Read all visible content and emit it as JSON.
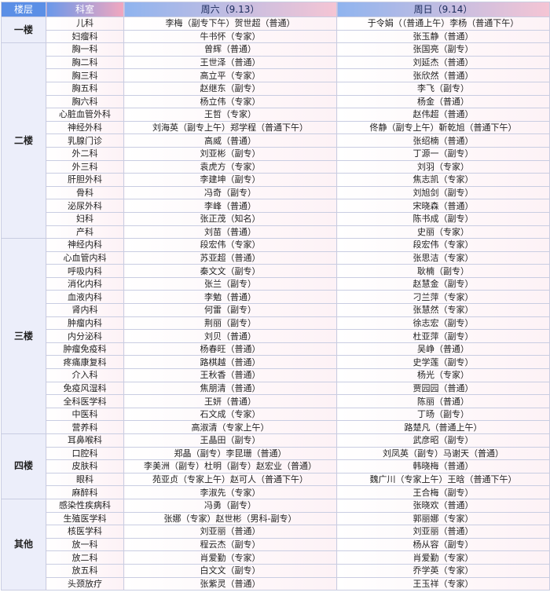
{
  "table": {
    "header": [
      "楼层",
      "科室",
      "周六（9.13）",
      "周日（9.14）"
    ],
    "groups": [
      {
        "floor": "一楼",
        "rows": [
          [
            "儿科",
            "李梅（副专下午）贺世超（普通）",
            "于令娟（（普通上午）李杨（普通下午）"
          ],
          [
            "妇瘤科",
            "牛书怀（专家）",
            "张玉静（普通）"
          ]
        ]
      },
      {
        "floor": "二楼",
        "rows": [
          [
            "胸一科",
            "曾辉（普通）",
            "张国亮（副专）"
          ],
          [
            "胸二科",
            "王世泽（普通）",
            "刘延杰（普通）"
          ],
          [
            "胸三科",
            "高立平（专家）",
            "张欣然（普通）"
          ],
          [
            "胸五科",
            "赵继东（副专）",
            "李飞（副专）"
          ],
          [
            "胸六科",
            "杨立伟（专家）",
            "杨金（普通）"
          ],
          [
            "心脏血管外科",
            "王哲（专家）",
            "赵伟超（普通）"
          ],
          [
            "神经外科",
            "刘海英（副专上午）郑学程（普通下午）",
            "佟静（副专上午）靳乾旭（普通下午）"
          ],
          [
            "乳腺门诊",
            "高威（普通）",
            "张绍楠（普通）"
          ],
          [
            "外二科",
            "刘亚彬（副专）",
            "丁源一（副专）"
          ],
          [
            "外三科",
            "袁虎方（专家）",
            "刘羽（专家）"
          ],
          [
            "肝胆外科",
            "李建坤（副专）",
            "焦志凯（专家）"
          ],
          [
            "骨科",
            "冯奇（副专）",
            "刘旭剑（副专）"
          ],
          [
            "泌尿外科",
            "李峰（普通）",
            "宋晓森（普通）"
          ],
          [
            "妇科",
            "张正茂（知名）",
            "陈书成（副专）"
          ],
          [
            "产科",
            "刘苗（普通）",
            "史丽（专家）"
          ]
        ]
      },
      {
        "floor": "三楼",
        "rows": [
          [
            "神经内科",
            "段宏伟（专家）",
            "段宏伟（专家）"
          ],
          [
            "心血管内科",
            "苏亚超（普通）",
            "张思洁（专家）"
          ],
          [
            "呼吸内科",
            "秦文文（副专）",
            "耿楠（副专）"
          ],
          [
            "消化内科",
            "张兰（副专）",
            "赵慧金（副专）"
          ],
          [
            "血液内科",
            "李勉（普通）",
            "刁兰萍（专家）"
          ],
          [
            "肾内科",
            "何雷（副专）",
            "张慧然（专家）"
          ],
          [
            "肿瘤内科",
            "荆丽（副专）",
            "徐志宏（副专）"
          ],
          [
            "内分泌科",
            "刘贝（普通）",
            "杜亚萍（副专）"
          ],
          [
            "肿瘤免疫科",
            "杨春旺（普通）",
            "吴峥（普通）"
          ],
          [
            "疼痛康复科",
            "路棋越（普通）",
            "史学莲（副专）"
          ],
          [
            "介入科",
            "王秋香（普通）",
            "杨光（专家）"
          ],
          [
            "免疫风湿科",
            "焦朋清（普通）",
            "贾园园（普通）"
          ],
          [
            "全科医学科",
            "王妍（普通）",
            "陈丽（普通）"
          ],
          [
            "中医科",
            "石文成（专家）",
            "丁旸（副专）"
          ],
          [
            "营养科",
            "高淑清（专家上午）",
            "路楚凡（普通上午）"
          ]
        ]
      },
      {
        "floor": "四楼",
        "rows": [
          [
            "耳鼻喉科",
            "王晶田（副专）",
            "武彦昭（副专）"
          ],
          [
            "口腔科",
            "郑晶（副专）李昆珊（普通）",
            "刘凤英（副专）马谢天（普通）"
          ],
          [
            "皮肤科",
            "李美洲（副专）杜明（副专）赵宏业（普通）",
            "韩晓梅（普通）"
          ],
          [
            "眼科",
            "苑亚贞（专家上午）赵可人（普通下午）",
            "魏广川（专家上午）王晗（普通下午）"
          ],
          [
            "麻醉科",
            "李淑先（专家）",
            "王合梅（副专）"
          ]
        ]
      },
      {
        "floor": "其他",
        "rows": [
          [
            "感染性疾病科",
            "冯勇（副专）",
            "张晓欢（普通）"
          ],
          [
            "生殖医学科",
            "张娜（专家）赵世彬（男科-副专）",
            "郭丽娜（专家）"
          ],
          [
            "核医学科",
            "刘亚丽（普通）",
            "刘亚丽（普通）"
          ],
          [
            "放一科",
            "程云杰（副专）",
            "杨从容（副专）"
          ],
          [
            "放二科",
            "肖爱勤（专家）",
            "肖爱勤（专家）"
          ],
          [
            "放五科",
            "白文文（副专）",
            "乔学英（专家）"
          ],
          [
            "头颈放疗",
            "张紫灵（普通）",
            "王玉祥（专家）"
          ]
        ]
      }
    ]
  }
}
